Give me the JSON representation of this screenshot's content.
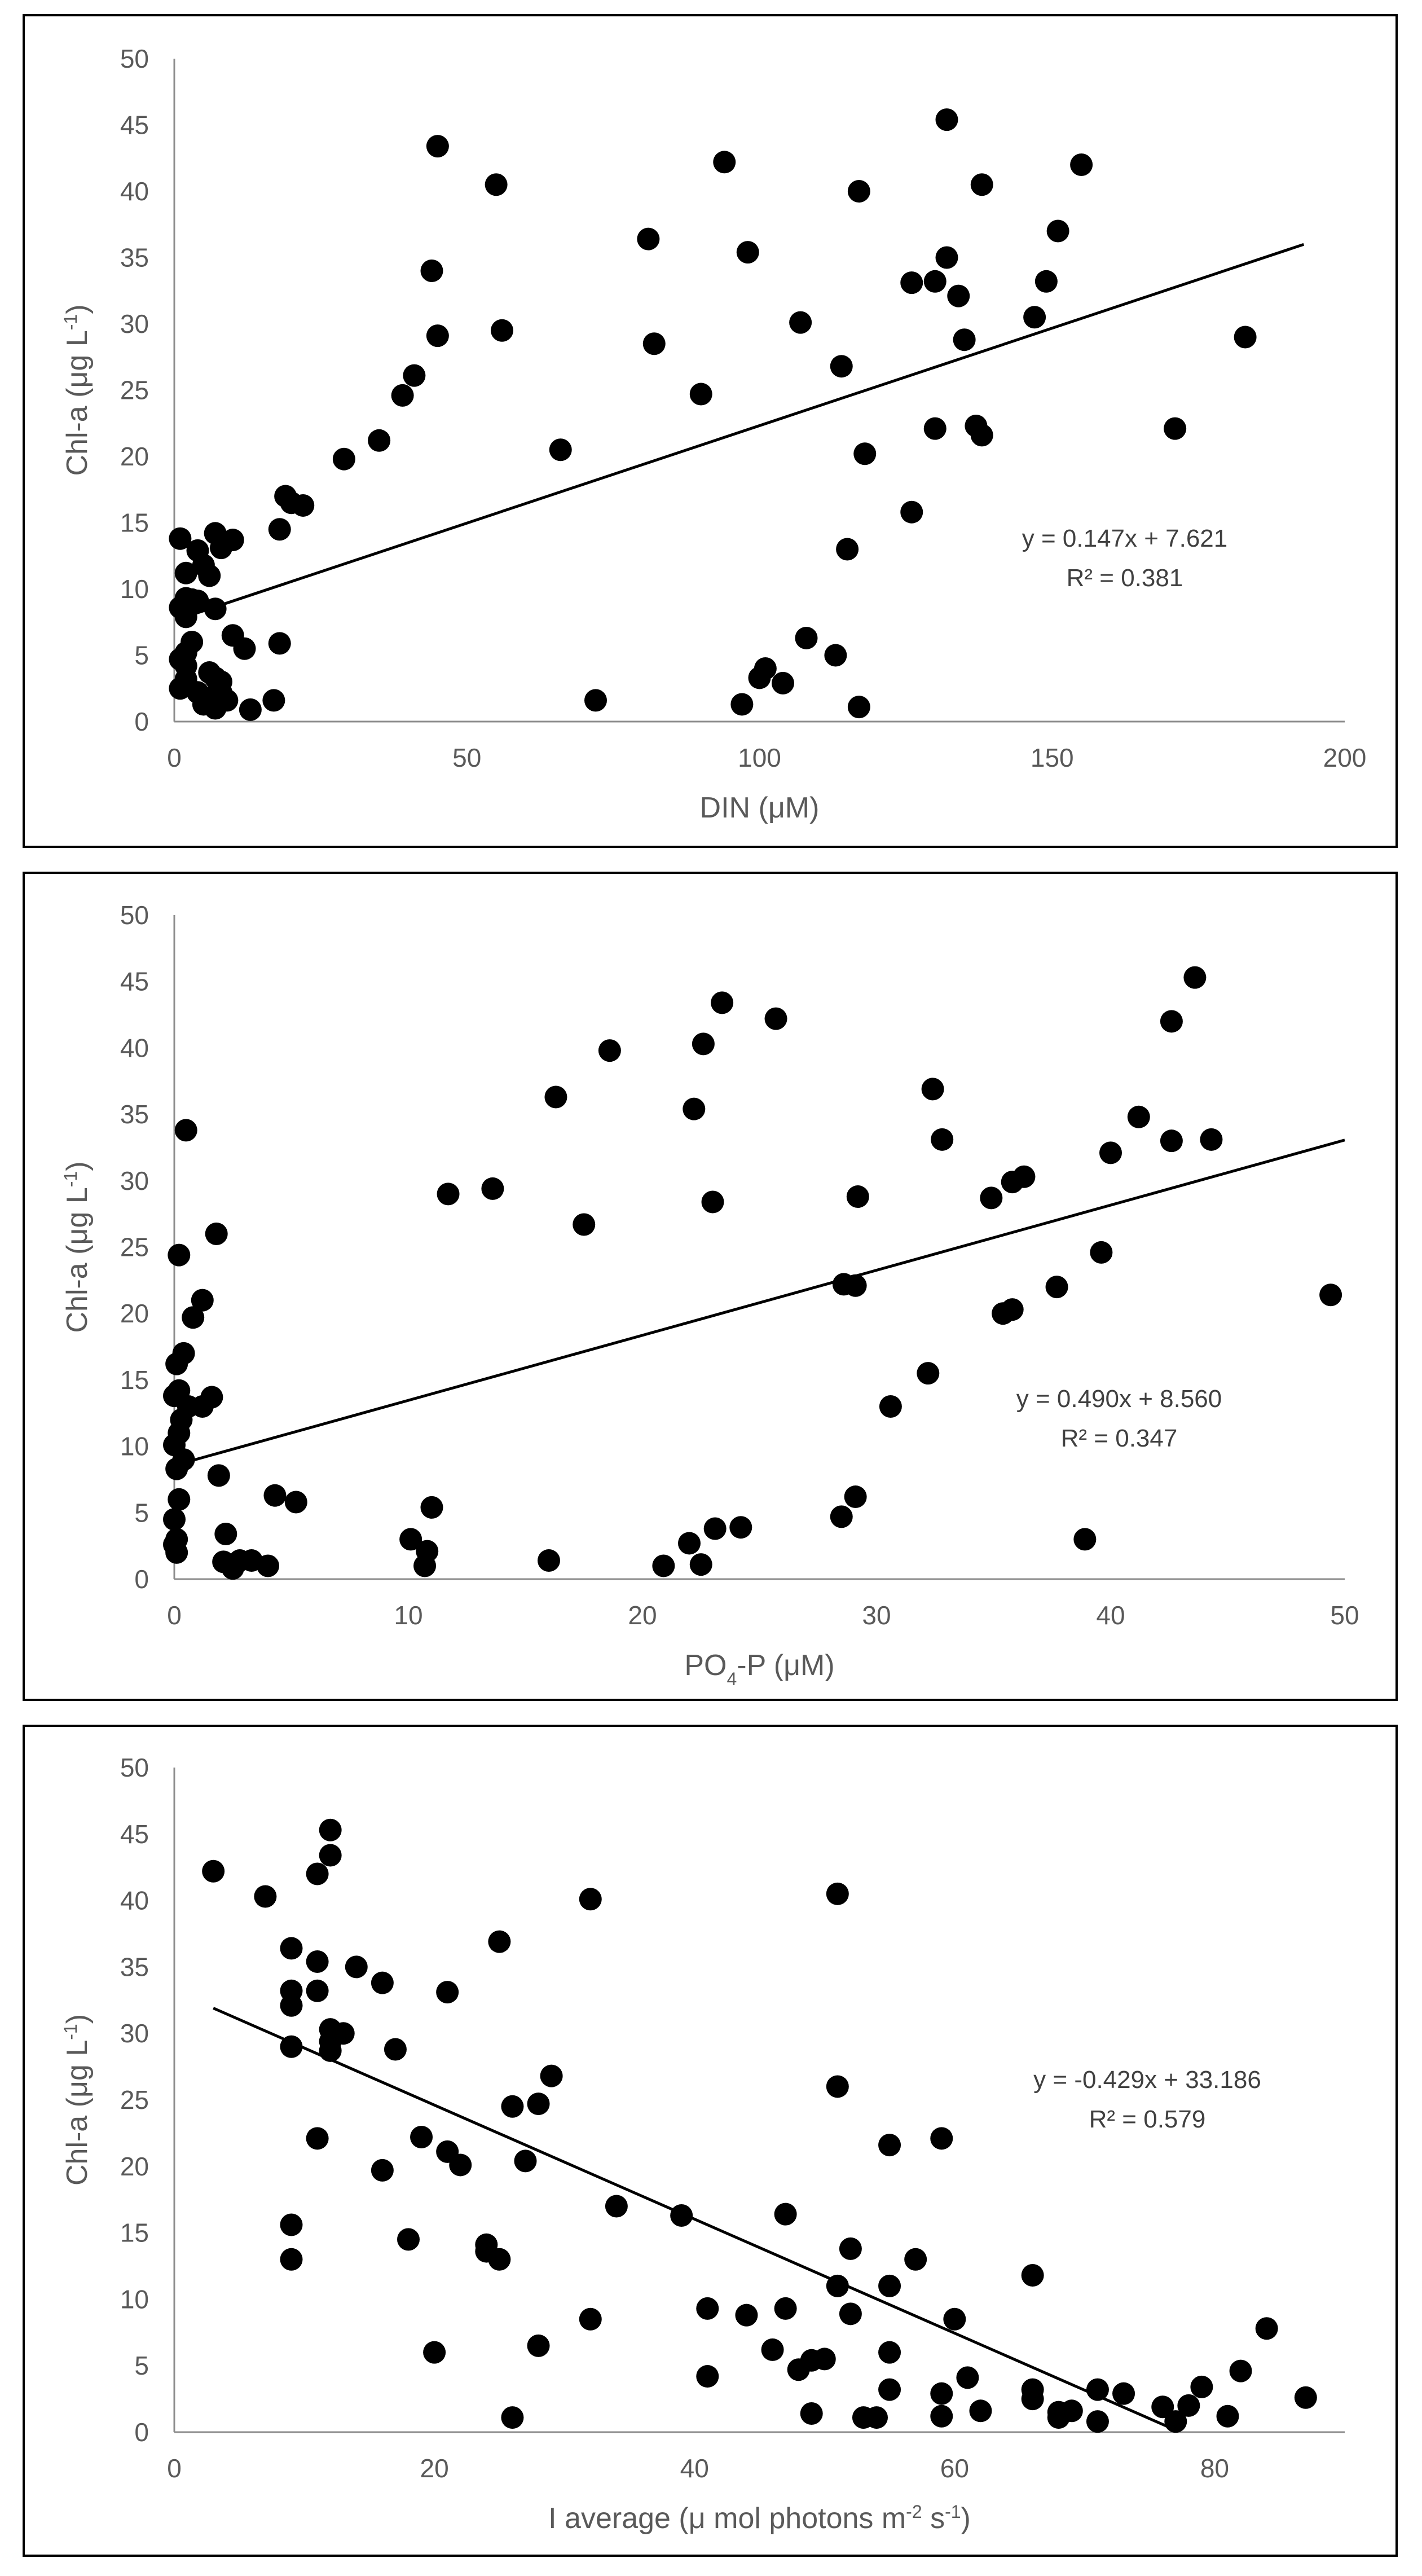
{
  "chart_data": [
    {
      "type": "scatter",
      "title": "",
      "xlabel": "DIN (μM)",
      "ylabel": "Chl-a (μg L-1)",
      "xlabel_parts": [
        {
          "t": "DIN (μM)"
        }
      ],
      "ylabel_parts": [
        {
          "t": "Chl-a (μg L"
        },
        {
          "t": "-1",
          "sup": true
        },
        {
          "t": ")"
        }
      ],
      "xlim": [
        0,
        200
      ],
      "ylim": [
        0,
        50
      ],
      "xticks": [
        "0",
        "50",
        "100",
        "150",
        "200"
      ],
      "yticks": [
        "0",
        "5",
        "10",
        "15",
        "20",
        "25",
        "30",
        "35",
        "40",
        "45",
        "50"
      ],
      "trendline": {
        "slope": 0.147,
        "intercept": 7.621,
        "x_range": [
          2,
          193
        ]
      },
      "equation": "y = 0.147x + 7.621",
      "r_squared": "R² = 0.381",
      "grid": false,
      "points": [
        [
          45,
          43.4
        ],
        [
          55,
          40.5
        ],
        [
          94,
          42.2
        ],
        [
          132,
          45.4
        ],
        [
          155,
          42
        ],
        [
          81,
          36.4
        ],
        [
          98,
          35.4
        ],
        [
          117,
          40
        ],
        [
          138,
          40.5
        ],
        [
          151,
          37
        ],
        [
          44,
          34
        ],
        [
          45,
          29.1
        ],
        [
          56,
          29.5
        ],
        [
          82,
          28.5
        ],
        [
          107,
          30.1
        ],
        [
          114,
          26.8
        ],
        [
          126,
          33.1
        ],
        [
          130,
          33.2
        ],
        [
          132,
          35
        ],
        [
          134,
          32.1
        ],
        [
          135,
          28.8
        ],
        [
          147,
          30.5
        ],
        [
          149,
          33.2
        ],
        [
          183,
          29
        ],
        [
          41,
          26.1
        ],
        [
          39,
          24.6
        ],
        [
          35,
          21.2
        ],
        [
          29,
          19.8
        ],
        [
          66,
          20.5
        ],
        [
          90,
          24.7
        ],
        [
          118,
          20.2
        ],
        [
          130,
          22.1
        ],
        [
          137,
          22.3
        ],
        [
          138,
          21.6
        ],
        [
          171,
          22.1
        ],
        [
          19,
          17
        ],
        [
          20,
          16.5
        ],
        [
          22,
          16.3
        ],
        [
          18,
          14.5
        ],
        [
          126,
          15.8
        ],
        [
          115,
          13
        ],
        [
          1,
          13.8
        ],
        [
          4,
          12.9
        ],
        [
          7,
          14.2
        ],
        [
          8,
          13.1
        ],
        [
          10,
          13.7
        ],
        [
          2,
          11.2
        ],
        [
          5,
          11.8
        ],
        [
          6,
          11
        ],
        [
          2,
          9.3
        ],
        [
          3,
          9.2
        ],
        [
          4,
          9.1
        ],
        [
          1,
          8.6
        ],
        [
          2,
          7.9
        ],
        [
          7,
          8.5
        ],
        [
          10,
          6.5
        ],
        [
          12,
          5.5
        ],
        [
          3,
          6
        ],
        [
          2,
          5.2
        ],
        [
          18,
          5.9
        ],
        [
          1,
          4.7
        ],
        [
          2,
          4.2
        ],
        [
          6,
          3.7
        ],
        [
          7,
          3.3
        ],
        [
          8,
          3
        ],
        [
          2,
          3.2
        ],
        [
          1,
          2.5
        ],
        [
          4,
          2.2
        ],
        [
          6,
          1.8
        ],
        [
          8,
          2.2
        ],
        [
          5,
          1.3
        ],
        [
          7,
          1
        ],
        [
          9,
          1.6
        ],
        [
          13,
          0.9
        ],
        [
          17,
          1.6
        ],
        [
          72,
          1.6
        ],
        [
          97,
          1.3
        ],
        [
          100,
          3.3
        ],
        [
          101,
          4
        ],
        [
          104,
          2.9
        ],
        [
          108,
          6.3
        ],
        [
          113,
          5
        ],
        [
          117,
          1.1
        ]
      ]
    },
    {
      "type": "scatter",
      "title": "",
      "xlabel": "PO4-P (μM)",
      "ylabel": "Chl-a (μg L-1)",
      "xlabel_parts": [
        {
          "t": "PO"
        },
        {
          "t": "4",
          "sub": true
        },
        {
          "t": "-P (μM)"
        }
      ],
      "ylabel_parts": [
        {
          "t": "Chl-a (μg L"
        },
        {
          "t": "-1",
          "sup": true
        },
        {
          "t": ")"
        }
      ],
      "xlim": [
        0,
        50
      ],
      "ylim": [
        0,
        50
      ],
      "xticks": [
        "0",
        "10",
        "20",
        "30",
        "40",
        "50"
      ],
      "yticks": [
        "0",
        "5",
        "10",
        "15",
        "20",
        "25",
        "30",
        "35",
        "40",
        "45",
        "50"
      ],
      "trendline": {
        "slope": 0.49,
        "intercept": 8.56,
        "x_range": [
          0.5,
          50
        ]
      },
      "equation": "y = 0.490x + 8.560",
      "r_squared": "R² = 0.347",
      "grid": false,
      "points": [
        [
          0.5,
          33.8
        ],
        [
          1.8,
          26
        ],
        [
          0.2,
          24.4
        ],
        [
          1.2,
          21
        ],
        [
          0.8,
          19.7
        ],
        [
          0.4,
          17
        ],
        [
          0.1,
          16.2
        ],
        [
          0.2,
          14.2
        ],
        [
          0,
          13.8
        ],
        [
          0.6,
          13
        ],
        [
          1.2,
          13
        ],
        [
          1.6,
          13.7
        ],
        [
          0.3,
          12
        ],
        [
          0.2,
          11
        ],
        [
          0,
          10.1
        ],
        [
          0.4,
          9
        ],
        [
          0.1,
          8.3
        ],
        [
          1.9,
          7.8
        ],
        [
          0.2,
          6
        ],
        [
          4.3,
          6.3
        ],
        [
          5.2,
          5.8
        ],
        [
          0,
          4.5
        ],
        [
          0.1,
          3
        ],
        [
          0,
          2.6
        ],
        [
          0.1,
          2
        ],
        [
          2.2,
          3.4
        ],
        [
          2.1,
          1.3
        ],
        [
          2.5,
          0.8
        ],
        [
          2.8,
          1.4
        ],
        [
          3.3,
          1.4
        ],
        [
          4,
          1
        ],
        [
          10.1,
          3
        ],
        [
          10.7,
          1
        ],
        [
          10.8,
          2.1
        ],
        [
          11,
          5.4
        ],
        [
          11.7,
          29
        ],
        [
          13.6,
          29.4
        ],
        [
          16.3,
          36.3
        ],
        [
          17.5,
          26.7
        ],
        [
          18.6,
          39.8
        ],
        [
          16,
          1.4
        ],
        [
          20.9,
          1
        ],
        [
          22,
          2.7
        ],
        [
          22.5,
          1.1
        ],
        [
          22.6,
          40.3
        ],
        [
          22.2,
          35.4
        ],
        [
          23,
          28.4
        ],
        [
          23.4,
          43.4
        ],
        [
          23.1,
          3.8
        ],
        [
          24.2,
          3.9
        ],
        [
          25.7,
          42.2
        ],
        [
          28.5,
          4.7
        ],
        [
          28.6,
          22.2
        ],
        [
          29.1,
          22.1
        ],
        [
          29.2,
          28.8
        ],
        [
          29.1,
          6.2
        ],
        [
          30.6,
          13
        ],
        [
          32.2,
          15.5
        ],
        [
          32.4,
          36.9
        ],
        [
          32.8,
          33.1
        ],
        [
          34.9,
          28.7
        ],
        [
          35.4,
          20
        ],
        [
          35.8,
          20.3
        ],
        [
          35.8,
          29.9
        ],
        [
          36.3,
          30.3
        ],
        [
          37.7,
          22
        ],
        [
          38.9,
          3
        ],
        [
          39.6,
          24.6
        ],
        [
          40,
          32.1
        ],
        [
          41.2,
          34.8
        ],
        [
          42.6,
          42
        ],
        [
          42.6,
          33
        ],
        [
          43.6,
          45.3
        ],
        [
          44.3,
          33.1
        ],
        [
          49.4,
          21.4
        ]
      ]
    },
    {
      "type": "scatter",
      "title": "",
      "xlabel": "I average (μ mol photons m-2 s-1)",
      "ylabel": "Chl-a (μg L-1)",
      "xlabel_parts": [
        {
          "t": "I average (μ mol photons m"
        },
        {
          "t": "-2",
          "sup": true
        },
        {
          "t": " s"
        },
        {
          "t": "-1",
          "sup": true
        },
        {
          "t": ")"
        }
      ],
      "ylabel_parts": [
        {
          "t": "Chl-a (μg L"
        },
        {
          "t": "-1",
          "sup": true
        },
        {
          "t": ")"
        }
      ],
      "xlim": [
        0,
        90
      ],
      "ylim": [
        0,
        50
      ],
      "xticks": [
        "0",
        "20",
        "40",
        "60",
        "80"
      ],
      "yticks": [
        "0",
        "5",
        "10",
        "15",
        "20",
        "25",
        "30",
        "35",
        "40",
        "45",
        "50"
      ],
      "trendline": {
        "slope": -0.429,
        "intercept": 33.186,
        "x_range": [
          3,
          77
        ]
      },
      "equation": "y = -0.429x + 33.186",
      "r_squared": "R² = 0.579",
      "grid": false,
      "points": [
        [
          3,
          42.2
        ],
        [
          7,
          40.3
        ],
        [
          9,
          36.4
        ],
        [
          9,
          33.2
        ],
        [
          9,
          32.1
        ],
        [
          9,
          29
        ],
        [
          9,
          15.6
        ],
        [
          9,
          13
        ],
        [
          11,
          42
        ],
        [
          11,
          35.4
        ],
        [
          11,
          33.2
        ],
        [
          11,
          22.1
        ],
        [
          12,
          45.3
        ],
        [
          12,
          43.4
        ],
        [
          12,
          30.3
        ],
        [
          12,
          29.4
        ],
        [
          12,
          28.7
        ],
        [
          13,
          30
        ],
        [
          14,
          35
        ],
        [
          16,
          33.8
        ],
        [
          16,
          19.7
        ],
        [
          17,
          28.8
        ],
        [
          18,
          14.5
        ],
        [
          19,
          22.2
        ],
        [
          20,
          6
        ],
        [
          21,
          33.1
        ],
        [
          21,
          21.1
        ],
        [
          22,
          20.1
        ],
        [
          24,
          14.1
        ],
        [
          24,
          13.6
        ],
        [
          25,
          36.9
        ],
        [
          25,
          13
        ],
        [
          26,
          24.5
        ],
        [
          26,
          1.1
        ],
        [
          27,
          20.4
        ],
        [
          28,
          24.7
        ],
        [
          28,
          6.5
        ],
        [
          29,
          26.8
        ],
        [
          32,
          40.1
        ],
        [
          32,
          8.5
        ],
        [
          34,
          17
        ],
        [
          39,
          16.3
        ],
        [
          41,
          9.3
        ],
        [
          41,
          4.2
        ],
        [
          44,
          8.8
        ],
        [
          46,
          6.2
        ],
        [
          47,
          16.4
        ],
        [
          47,
          9.3
        ],
        [
          48,
          4.7
        ],
        [
          49,
          5.4
        ],
        [
          49,
          1.4
        ],
        [
          50,
          5.5
        ],
        [
          51,
          40.5
        ],
        [
          51,
          26
        ],
        [
          51,
          11
        ],
        [
          52,
          13.8
        ],
        [
          52,
          8.9
        ],
        [
          53,
          1.1
        ],
        [
          54,
          1.1
        ],
        [
          55,
          21.6
        ],
        [
          55,
          11
        ],
        [
          55,
          6
        ],
        [
          55,
          3.2
        ],
        [
          57,
          13
        ],
        [
          59,
          22.1
        ],
        [
          59,
          2.9
        ],
        [
          59,
          1.2
        ],
        [
          60,
          8.5
        ],
        [
          61,
          4.1
        ],
        [
          62,
          1.6
        ],
        [
          66,
          11.8
        ],
        [
          66,
          3.2
        ],
        [
          66,
          2.5
        ],
        [
          68,
          1.5
        ],
        [
          68,
          1.1
        ],
        [
          69,
          1.6
        ],
        [
          71,
          3.2
        ],
        [
          71,
          0.8
        ],
        [
          73,
          2.9
        ],
        [
          76,
          1.9
        ],
        [
          77,
          0.8
        ],
        [
          78,
          2
        ],
        [
          79,
          3.4
        ],
        [
          81,
          1.2
        ],
        [
          82,
          4.6
        ],
        [
          84,
          7.8
        ],
        [
          87,
          2.6
        ]
      ]
    }
  ]
}
